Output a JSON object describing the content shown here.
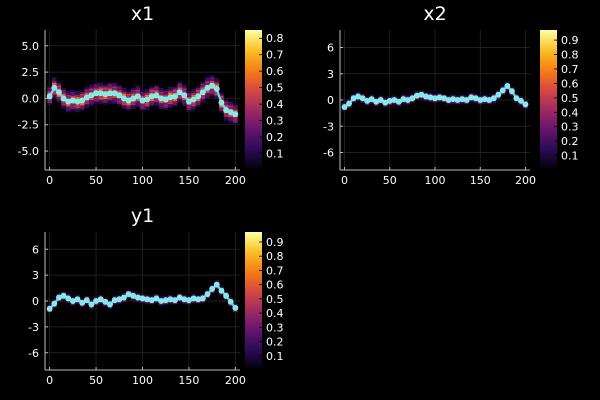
{
  "figure": {
    "background": "#000000",
    "grid_color": "#2a2a2a",
    "axis_color": "#bbbbbb",
    "text_color": "#ffffff",
    "points_color": "#79ecec"
  },
  "chart_data": [
    {
      "type": "heatmap",
      "title": "x1",
      "xlim": [
        -5,
        205
      ],
      "ylim": [
        -6.8,
        6.5
      ],
      "xticks": [
        0,
        50,
        100,
        150,
        200
      ],
      "yticks": [
        -5.0,
        -2.5,
        0.0,
        2.5,
        5.0
      ],
      "ytick_labels": [
        "-5.0",
        "-2.5",
        "0.0",
        "2.5",
        "5.0"
      ],
      "colorbar": {
        "colormap": "inferno",
        "range": [
          0.0,
          0.85
        ],
        "ticks": [
          0.1,
          0.2,
          0.3,
          0.4,
          0.5,
          0.6,
          0.7,
          0.8
        ]
      },
      "series": [
        {
          "type": "scatter",
          "x": [
            0,
            5,
            10,
            15,
            20,
            25,
            30,
            35,
            40,
            45,
            50,
            55,
            60,
            65,
            70,
            75,
            80,
            85,
            90,
            95,
            100,
            105,
            110,
            115,
            120,
            125,
            130,
            135,
            140,
            145,
            150,
            155,
            160,
            165,
            170,
            175,
            180,
            185,
            190,
            195,
            200
          ],
          "y": [
            0.2,
            1.0,
            0.6,
            0.0,
            -0.3,
            -0.2,
            -0.3,
            -0.2,
            0.1,
            0.3,
            0.5,
            0.5,
            0.4,
            0.5,
            0.5,
            0.3,
            0.0,
            -0.2,
            0.0,
            0.2,
            -0.2,
            -0.1,
            0.2,
            0.3,
            0.0,
            -0.1,
            0.1,
            0.2,
            0.6,
            0.3,
            -0.3,
            -0.1,
            0.2,
            0.6,
            1.0,
            1.2,
            0.9,
            -0.4,
            -1.1,
            -1.3,
            -1.5
          ]
        }
      ]
    },
    {
      "type": "heatmap",
      "title": "x2",
      "xlim": [
        -5,
        205
      ],
      "ylim": [
        -8,
        8
      ],
      "xticks": [
        0,
        50,
        100,
        150,
        200
      ],
      "yticks": [
        -6,
        -3,
        0,
        3,
        6
      ],
      "ytick_labels": [
        "-6",
        "-3",
        "0",
        "3",
        "6"
      ],
      "colorbar": {
        "colormap": "inferno",
        "range": [
          0.0,
          0.97
        ],
        "ticks": [
          0.1,
          0.2,
          0.3,
          0.4,
          0.5,
          0.6,
          0.7,
          0.8,
          0.9
        ]
      },
      "series": [
        {
          "type": "scatter",
          "x": [
            0,
            5,
            10,
            15,
            20,
            25,
            30,
            35,
            40,
            45,
            50,
            55,
            60,
            65,
            70,
            75,
            80,
            85,
            90,
            95,
            100,
            105,
            110,
            115,
            120,
            125,
            130,
            135,
            140,
            145,
            150,
            155,
            160,
            165,
            170,
            175,
            180,
            185,
            190,
            195,
            200
          ],
          "y": [
            -0.8,
            -0.4,
            0.2,
            0.4,
            0.2,
            -0.1,
            0.1,
            -0.2,
            0.0,
            -0.3,
            -0.1,
            0.0,
            -0.2,
            0.1,
            0.0,
            0.2,
            0.5,
            0.6,
            0.4,
            0.3,
            0.2,
            0.3,
            0.2,
            0.0,
            0.1,
            0.0,
            0.1,
            0.0,
            0.3,
            0.2,
            0.0,
            0.1,
            0.0,
            0.2,
            0.6,
            1.1,
            1.6,
            1.0,
            0.2,
            -0.1,
            -0.5
          ]
        }
      ]
    },
    {
      "type": "heatmap",
      "title": "y1",
      "xlim": [
        -5,
        205
      ],
      "ylim": [
        -8,
        8
      ],
      "xticks": [
        0,
        50,
        100,
        150,
        200
      ],
      "yticks": [
        -6,
        -3,
        0,
        3,
        6
      ],
      "ytick_labels": [
        "-6",
        "-3",
        "0",
        "3",
        "6"
      ],
      "colorbar": {
        "colormap": "inferno",
        "range": [
          0.0,
          0.97
        ],
        "ticks": [
          0.1,
          0.2,
          0.3,
          0.4,
          0.5,
          0.6,
          0.7,
          0.8,
          0.9
        ]
      },
      "series": [
        {
          "type": "scatter",
          "x": [
            0,
            5,
            10,
            15,
            20,
            25,
            30,
            35,
            40,
            45,
            50,
            55,
            60,
            65,
            70,
            75,
            80,
            85,
            90,
            95,
            100,
            105,
            110,
            115,
            120,
            125,
            130,
            135,
            140,
            145,
            150,
            155,
            160,
            165,
            170,
            175,
            180,
            185,
            190,
            195,
            200
          ],
          "y": [
            -0.9,
            -0.3,
            0.4,
            0.6,
            0.3,
            0.0,
            0.2,
            -0.2,
            0.1,
            -0.4,
            0.0,
            0.2,
            -0.1,
            -0.4,
            0.1,
            0.2,
            0.4,
            0.8,
            0.6,
            0.4,
            0.3,
            0.2,
            0.1,
            0.3,
            0.0,
            0.1,
            0.2,
            0.1,
            0.4,
            0.2,
            0.1,
            0.3,
            0.2,
            0.3,
            0.8,
            1.4,
            1.9,
            1.2,
            0.6,
            -0.1,
            -0.8
          ]
        }
      ]
    }
  ]
}
